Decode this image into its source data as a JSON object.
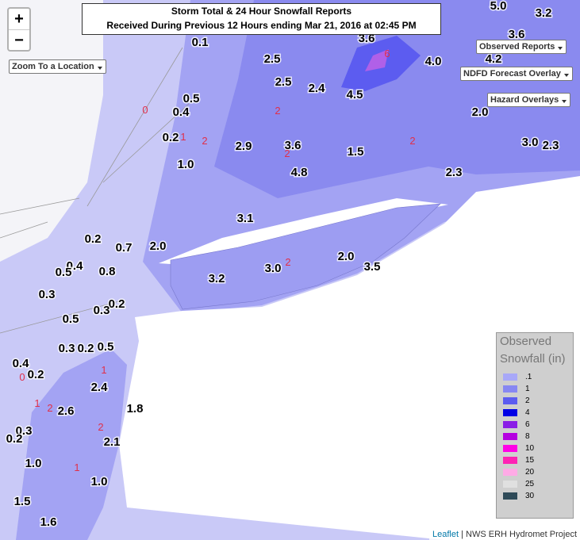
{
  "title": {
    "line1": "Storm Total & 24 Hour Snowfall Reports",
    "line2": "Received During Previous 12 Hours ending Mar 21, 2016 at 02:45 PM"
  },
  "controls": {
    "zoom_in": "+",
    "zoom_out": "−",
    "zoom_to": "Zoom To a Location",
    "observed_reports": "Observed Reports",
    "ndfd": "NDFD Forecast Overlay",
    "hazard": "Hazard Overlays"
  },
  "reports": [
    "0.1",
    "2.5",
    "3.6",
    "5.0",
    "3.2",
    "3.6",
    "4.0",
    "4.2",
    "2.5",
    "2.4",
    "4.5",
    "0.5",
    "0.4",
    "2.0",
    "0.2",
    "2.9",
    "3.6",
    "1.5",
    "3.0",
    "2.3",
    "1.0",
    "4.8",
    "2.3",
    "3.1",
    "0.2",
    "0.7",
    "2.0",
    "2.0",
    "3.0",
    "3.5",
    "0.4",
    "0.5",
    "0.8",
    "3.2",
    "0.3",
    "0.2",
    "0.3",
    "0.5",
    "0.3",
    "0.2",
    "0.5",
    "0.4",
    "0.2",
    "2.4",
    "2.6",
    "1.8",
    "0.3",
    "0.2",
    "2.1",
    "1.0",
    "1.0",
    "1.5",
    "1.6"
  ],
  "contour_labels": [
    "0",
    "1",
    "2",
    "2",
    "2",
    "2",
    "1",
    "1",
    "2",
    "2",
    "1",
    "0",
    "2",
    "6"
  ],
  "legend": {
    "title_line1": "Observed",
    "title_line2": "Snowfall (in)",
    "items": [
      {
        "label": ".1",
        "color": "#a8a8f8"
      },
      {
        "label": "1",
        "color": "#8787f2"
      },
      {
        "label": "2",
        "color": "#5c5cf0"
      },
      {
        "label": "4",
        "color": "#0000e6"
      },
      {
        "label": "6",
        "color": "#8a1ee6"
      },
      {
        "label": "8",
        "color": "#b400e0"
      },
      {
        "label": "10",
        "color": "#ff00e6"
      },
      {
        "label": "15",
        "color": "#ff22b4"
      },
      {
        "label": "20",
        "color": "#ffaae6"
      },
      {
        "label": "25",
        "color": "#e0e0e0"
      },
      {
        "label": "30",
        "color": "#2e4a58"
      }
    ]
  },
  "attribution": {
    "link": "Leaflet",
    "text": "| NWS ERH Hydromet Project"
  }
}
